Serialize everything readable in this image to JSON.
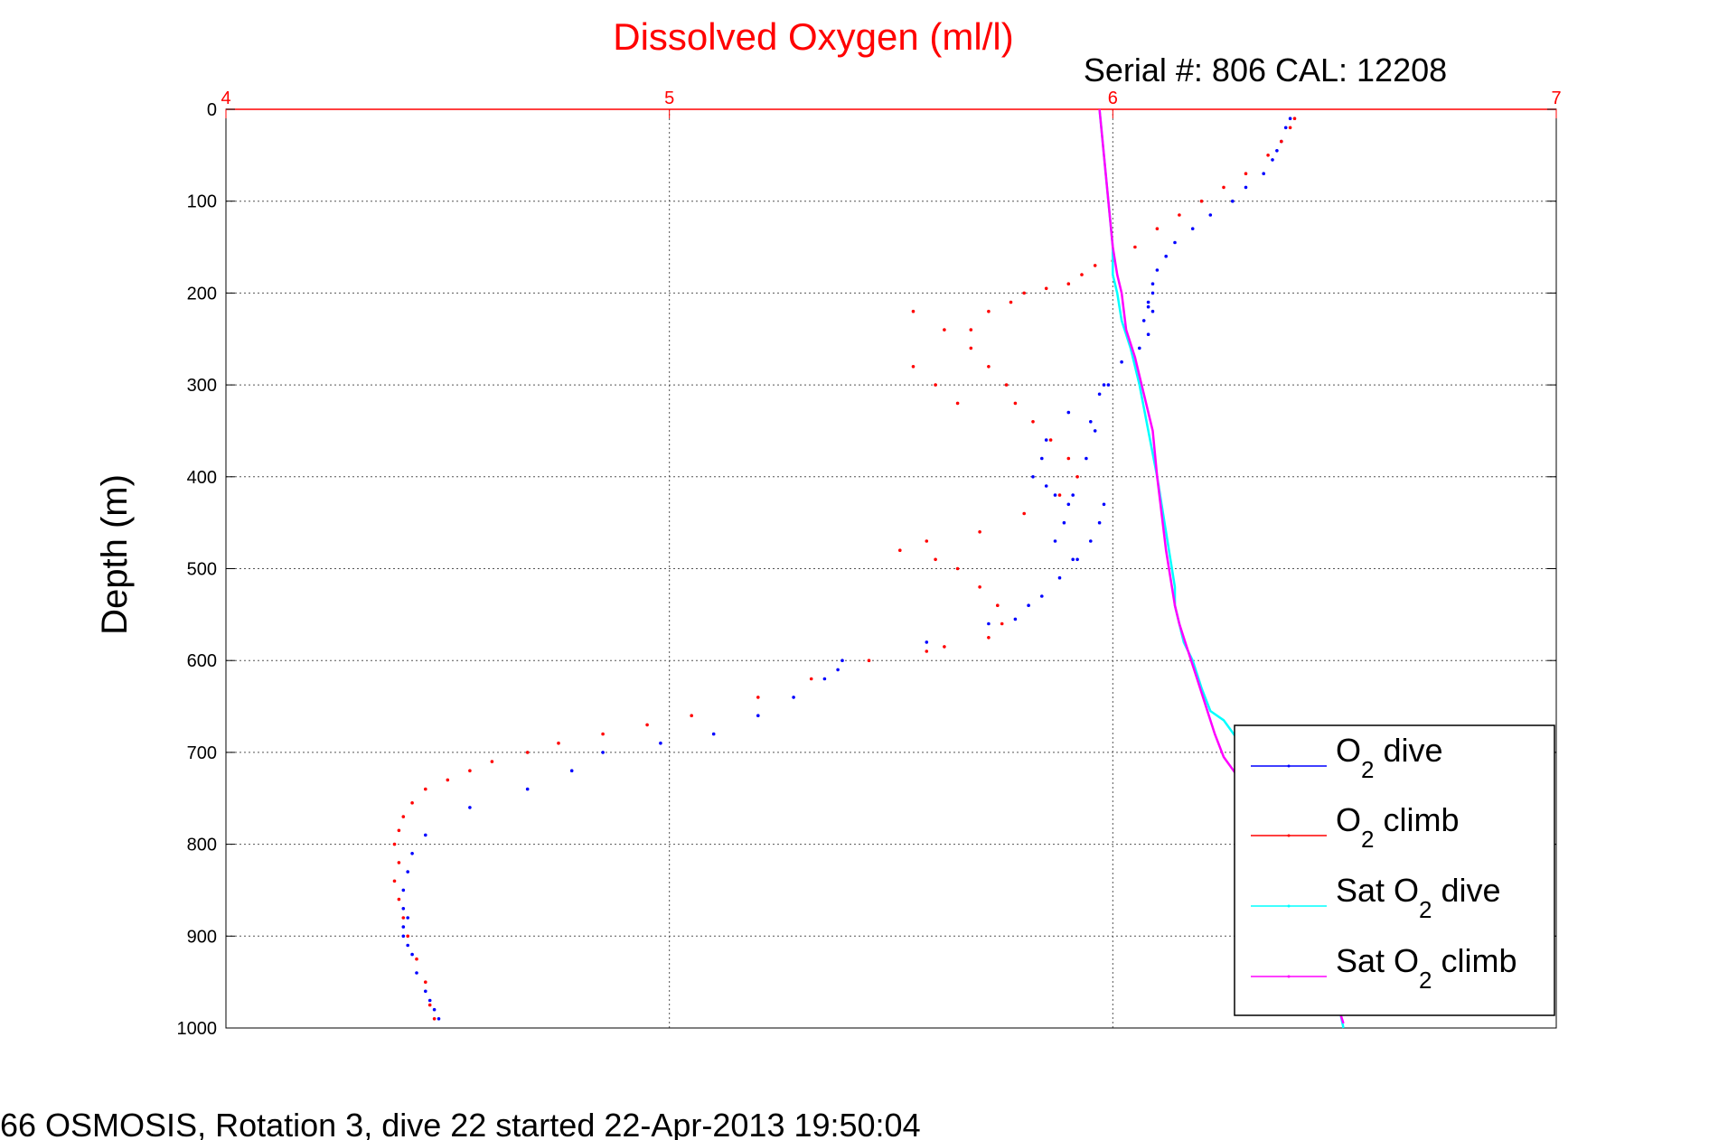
{
  "chart_data": {
    "type": "scatter",
    "title": "Dissolved Oxygen (ml/l)",
    "subtitle": "Serial #: 806  CAL: 12208",
    "ylabel": "Depth (m)",
    "xlabel": "",
    "xlim": [
      4,
      7
    ],
    "ylim": [
      0,
      1000
    ],
    "y_reversed": true,
    "x_axis_position": "top",
    "x_ticks": [
      "4",
      "5",
      "6",
      "7"
    ],
    "y_ticks": [
      "0",
      "100",
      "200",
      "300",
      "400",
      "500",
      "600",
      "700",
      "800",
      "900",
      "1000"
    ],
    "grid": true,
    "legend_position": "bottom-right",
    "footer": "66 OSMOSIS, Rotation 3, dive 22 started 22-Apr-2013 19:50:04",
    "colors": {
      "dive": "#0000ff",
      "climb": "#ff0000",
      "sat_dive": "#00ffff",
      "sat_climb": "#ff00ff",
      "title": "#ff0000"
    },
    "series": [
      {
        "name": "O2 dive",
        "legend_label": [
          "O",
          "2",
          " dive"
        ],
        "color": "#0000ff",
        "style": "dots",
        "x": [
          6.4,
          6.39,
          6.38,
          6.37,
          6.36,
          6.34,
          6.3,
          6.27,
          6.22,
          6.18,
          6.14,
          6.12,
          6.1,
          6.09,
          6.09,
          6.08,
          6.08,
          6.09,
          6.07,
          6.08,
          6.06,
          6.02,
          5.98,
          5.9,
          5.85,
          5.84,
          5.82,
          5.85,
          5.87,
          5.95,
          5.97,
          5.99,
          5.96,
          5.94,
          5.91,
          5.9,
          5.89,
          5.87,
          5.91,
          5.97,
          5.98,
          5.95,
          5.92,
          5.88,
          5.84,
          5.81,
          5.78,
          5.72,
          5.58,
          5.39,
          5.38,
          5.35,
          5.28,
          5.2,
          5.1,
          4.98,
          4.85,
          4.78,
          4.68,
          4.55,
          4.45,
          4.42,
          4.41,
          4.4,
          4.4,
          4.41,
          4.4,
          4.4,
          4.41,
          4.42,
          4.43,
          4.45,
          4.46,
          4.47,
          4.48
        ],
        "y": [
          10,
          20,
          35,
          45,
          55,
          70,
          85,
          100,
          115,
          130,
          145,
          160,
          175,
          190,
          200,
          210,
          215,
          220,
          230,
          245,
          260,
          275,
          300,
          330,
          360,
          380,
          400,
          410,
          420,
          340,
          310,
          300,
          350,
          380,
          420,
          430,
          450,
          470,
          490,
          450,
          430,
          470,
          490,
          510,
          530,
          540,
          555,
          560,
          580,
          600,
          610,
          620,
          640,
          660,
          680,
          690,
          700,
          720,
          740,
          760,
          790,
          810,
          830,
          850,
          870,
          880,
          890,
          900,
          910,
          920,
          940,
          960,
          970,
          980,
          990
        ]
      },
      {
        "name": "O2 climb",
        "legend_label": [
          "O",
          "2",
          " climb"
        ],
        "color": "#ff0000",
        "style": "dots",
        "x": [
          4.47,
          4.46,
          4.45,
          4.43,
          4.41,
          4.4,
          4.39,
          4.38,
          4.39,
          4.38,
          4.39,
          4.4,
          4.42,
          4.45,
          4.5,
          4.55,
          4.6,
          4.68,
          4.75,
          4.85,
          4.95,
          5.05,
          5.2,
          5.32,
          5.45,
          5.58,
          5.62,
          5.72,
          5.75,
          5.74,
          5.7,
          5.65,
          5.6,
          5.52,
          5.58,
          5.7,
          5.8,
          5.88,
          5.92,
          5.9,
          5.86,
          5.82,
          5.78,
          5.76,
          5.72,
          5.68,
          5.62,
          5.55,
          5.55,
          5.6,
          5.65,
          5.68,
          5.72,
          5.77,
          5.8,
          5.85,
          5.9,
          5.93,
          5.96,
          6.0,
          6.05,
          6.1,
          6.15,
          6.2,
          6.25,
          6.3,
          6.35,
          6.38,
          6.4,
          6.41
        ],
        "y": [
          990,
          975,
          950,
          925,
          900,
          880,
          860,
          840,
          820,
          800,
          785,
          770,
          755,
          740,
          730,
          720,
          710,
          700,
          690,
          680,
          670,
          660,
          640,
          620,
          600,
          590,
          585,
          575,
          560,
          540,
          520,
          500,
          490,
          480,
          470,
          460,
          440,
          420,
          400,
          380,
          360,
          340,
          320,
          300,
          280,
          260,
          240,
          220,
          280,
          300,
          320,
          240,
          220,
          210,
          200,
          195,
          190,
          180,
          170,
          165,
          150,
          130,
          115,
          100,
          85,
          70,
          50,
          35,
          20,
          10
        ]
      },
      {
        "name": "Sat O2 dive",
        "legend_label": [
          "Sat O",
          "2",
          " dive"
        ],
        "color": "#00ffff",
        "style": "line",
        "x": [
          5.97,
          5.98,
          5.99,
          6.0,
          6.0,
          6.01,
          6.02,
          6.04,
          6.06,
          6.08,
          6.1,
          6.11,
          6.12,
          6.13,
          6.14,
          6.14,
          6.15,
          6.16,
          6.18,
          6.2,
          6.22,
          6.25,
          6.28,
          6.3,
          6.34,
          6.38,
          6.42,
          6.46,
          6.49,
          6.52
        ],
        "y": [
          0,
          50,
          100,
          150,
          180,
          200,
          230,
          260,
          300,
          350,
          400,
          430,
          460,
          490,
          520,
          540,
          560,
          580,
          600,
          630,
          655,
          665,
          685,
          700,
          730,
          780,
          830,
          880,
          930,
          1000
        ]
      },
      {
        "name": "Sat O2 climb",
        "legend_label": [
          "Sat O",
          "2",
          " climb"
        ],
        "color": "#ff00ff",
        "style": "line",
        "x": [
          5.97,
          5.98,
          5.99,
          6.0,
          6.01,
          6.02,
          6.03,
          6.05,
          6.07,
          6.09,
          6.1,
          6.11,
          6.12,
          6.13,
          6.14,
          6.15,
          6.17,
          6.19,
          6.21,
          6.23,
          6.25,
          6.28,
          6.3,
          6.34,
          6.38,
          6.42,
          6.46,
          6.49,
          6.52
        ],
        "y": [
          0,
          50,
          100,
          150,
          180,
          200,
          240,
          270,
          310,
          350,
          400,
          440,
          480,
          510,
          540,
          560,
          590,
          620,
          650,
          680,
          705,
          725,
          735,
          765,
          810,
          860,
          910,
          950,
          995
        ]
      }
    ]
  }
}
